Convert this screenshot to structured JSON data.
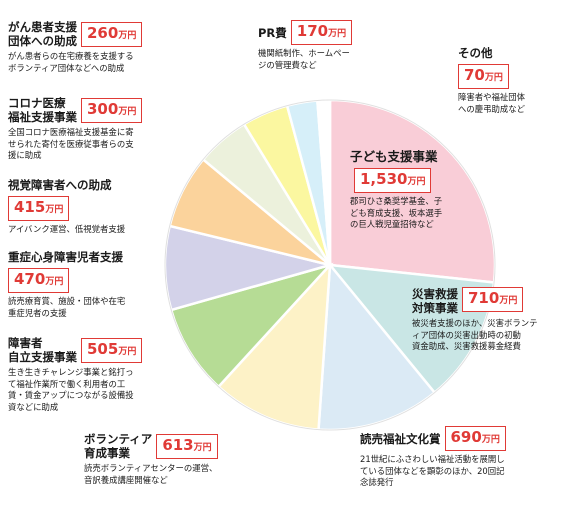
{
  "chart_data": {
    "type": "pie",
    "unit": "万円",
    "slices": [
      {
        "name": "子ども支援事業",
        "value": 1530,
        "label": "1,530",
        "color": "#f9cdd7",
        "desc": [
          "郡司ひさ桑奨学基金、子",
          "ども育成支援、坂本選手",
          "の巨人戦児童招待など"
        ]
      },
      {
        "name": "災害救援\n対策事業",
        "value": 710,
        "label": "710",
        "color": "#c9e6e5",
        "desc": [
          "被災者支援のほか、災害ボランテ",
          "ィア団体の災害出動時の初動",
          "資金助成、災害救援募金経費"
        ]
      },
      {
        "name": "読売福祉文化賞",
        "value": 690,
        "label": "690",
        "color": "#dbeaf5",
        "desc": [
          "21世紀にふさわしい福祉活動を展開し",
          "ている団体などを顕彰のほか、20回記",
          "念誌発行"
        ]
      },
      {
        "name": "ボランティア\n育成事業",
        "value": 613,
        "label": "613",
        "color": "#fdf2c7",
        "desc": [
          "読売ボランティアセンターの運営、",
          "音訳養成講座開催など"
        ]
      },
      {
        "name": "障害者\n自立支援事業",
        "value": 505,
        "label": "505",
        "color": "#b6dc95",
        "desc": [
          "生き生きチャレンジ事業と銘打っ",
          "て福祉作業所で働く利用者の工",
          "賃・賃金アップにつながる設備投",
          "資などに助成"
        ]
      },
      {
        "name": "重症心身障害児者支援",
        "value": 470,
        "label": "470",
        "color": "#d3d2e9",
        "desc": [
          "読売療育賞、施設・団体や在宅",
          "重症児者の支援"
        ]
      },
      {
        "name": "視覚障害者への助成",
        "value": 415,
        "label": "415",
        "color": "#fbd39c",
        "desc": [
          "アイバンク運営、低視覚者支援"
        ]
      },
      {
        "name": "コロナ医療\n福祉支援事業",
        "value": 300,
        "label": "300",
        "color": "#ecf1dc",
        "desc": [
          "全国コロナ医療福祉支援基金に寄",
          "せられた寄付を医療従事者らの支",
          "援に助成"
        ]
      },
      {
        "name": "がん患者支援\n団体への助成",
        "value": 260,
        "label": "260",
        "color": "#fbf7a0",
        "desc": [
          "がん患者らの在宅療養を支援する",
          "ボランティア団体などへの助成"
        ]
      },
      {
        "name": "PR費",
        "value": 170,
        "label": "170",
        "color": "#d6eff9",
        "desc": [
          "機関紙制作、ホームペー",
          "ジの管理費など"
        ]
      },
      {
        "name": "その他",
        "value": 70,
        "label": "70",
        "color": "#ffffff",
        "desc": [
          "障害者や福祉団体",
          "への慶弔助成など"
        ]
      }
    ]
  }
}
